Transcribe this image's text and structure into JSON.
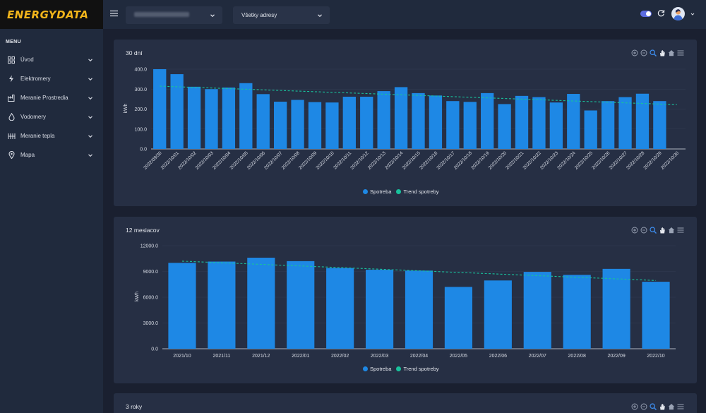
{
  "app": {
    "logo_text": "ENERGYDATA"
  },
  "sidebar": {
    "menu_title": "MENU",
    "items": [
      {
        "label": "Úvod",
        "icon": "dashboard-icon"
      },
      {
        "label": "Elektromery",
        "icon": "bolt-icon"
      },
      {
        "label": "Meranie Prostredia",
        "icon": "factory-icon"
      },
      {
        "label": "Vodomery",
        "icon": "water-drop-icon"
      },
      {
        "label": "Meranie tepla",
        "icon": "heat-icon"
      },
      {
        "label": "Mapa",
        "icon": "map-pin-icon"
      }
    ]
  },
  "topbar": {
    "select1_value": "",
    "select2_value": "Všetky adresy"
  },
  "colors": {
    "bar": "#1e88e5",
    "trend": "#18c29c",
    "accent": "#f2b51b"
  },
  "charts": [
    {
      "title": "30 dní",
      "legend": [
        "Spotreba",
        "Trend spotreby"
      ],
      "chart_data": {
        "type": "bar",
        "ylabel": "kWh",
        "ylim": [
          0,
          400
        ],
        "yticks": [
          "0.0",
          "100.0",
          "200.0",
          "300.0",
          "400.0"
        ],
        "categories": [
          "2022/09/30",
          "2022/10/01",
          "2022/10/02",
          "2022/10/03",
          "2022/10/04",
          "2022/10/05",
          "2022/10/06",
          "2022/10/07",
          "2022/10/08",
          "2022/10/09",
          "2022/10/10",
          "2022/10/11",
          "2022/10/12",
          "2022/10/13",
          "2022/10/14",
          "2022/10/15",
          "2022/10/16",
          "2022/10/17",
          "2022/10/18",
          "2022/10/19",
          "2022/10/20",
          "2022/10/21",
          "2022/10/22",
          "2022/10/23",
          "2022/10/24",
          "2022/10/25",
          "2022/10/26",
          "2022/10/27",
          "2022/10/28",
          "2022/10/29",
          "2022/10/30"
        ],
        "series": [
          {
            "name": "Spotreba",
            "values": [
              400,
              375,
              312,
              300,
              308,
              330,
              275,
              237,
              246,
              235,
              233,
              262,
              262,
              290,
              310,
              280,
              268,
              240,
              236,
              280,
              225,
              266,
              260,
              233,
              276,
              193,
              240,
              260,
              277,
              240,
              null
            ]
          },
          {
            "name": "Trend spotreby",
            "start": 315,
            "end": 222
          }
        ]
      }
    },
    {
      "title": "12 mesiacov",
      "legend": [
        "Spotreba",
        "Trend spotreby"
      ],
      "chart_data": {
        "type": "bar",
        "ylabel": "kWh",
        "ylim": [
          0,
          12000
        ],
        "yticks": [
          "0.0",
          "3000.0",
          "6000.0",
          "9000.0",
          "12000.0"
        ],
        "categories": [
          "2021/10",
          "2021/11",
          "2021/12",
          "2022/01",
          "2022/02",
          "2022/03",
          "2022/04",
          "2022/05",
          "2022/06",
          "2022/07",
          "2022/08",
          "2022/09",
          "2022/10"
        ],
        "series": [
          {
            "name": "Spotreba",
            "values": [
              10000,
              10150,
              10600,
              10200,
              9400,
              9200,
              9100,
              7200,
              7950,
              8950,
              8600,
              9300,
              7800
            ]
          },
          {
            "name": "Trend spotreby",
            "start": 10200,
            "end": 7950
          }
        ]
      }
    },
    {
      "title": "3 roky",
      "legend": []
    }
  ]
}
